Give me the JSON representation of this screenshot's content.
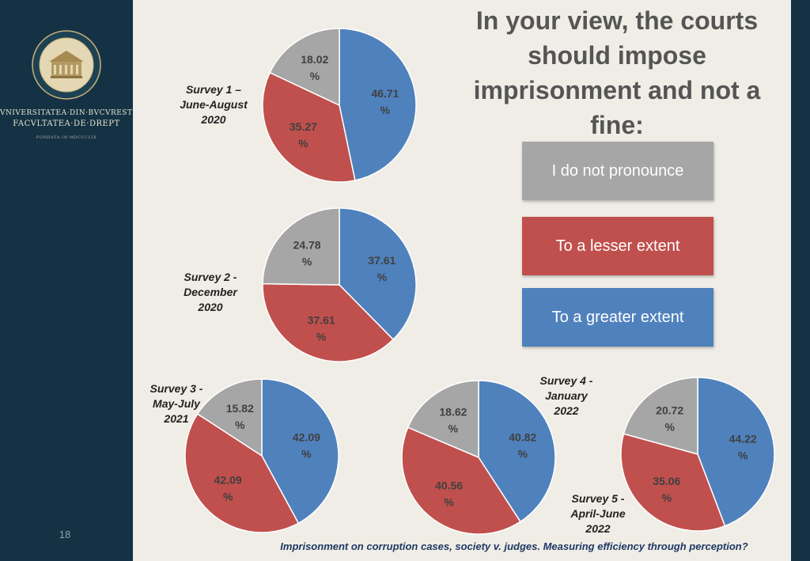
{
  "slide": {
    "page_number": "18"
  },
  "institution": {
    "line1": "VNIVERSITATEA·DIN·BVCVRESTI",
    "line2": "FACVLTATEA·DE·DREPT",
    "line3": "FONDATA·IN·MDCCCLIX"
  },
  "title": "In your view, the courts should impose imprisonment and not a fine:",
  "legend": [
    {
      "label": "I do not pronounce",
      "color": "#a6a6a6"
    },
    {
      "label": "To a lesser extent",
      "color": "#c0504d"
    },
    {
      "label": "To a greater extent",
      "color": "#4f81bd"
    }
  ],
  "footer": "Imprisonment on corruption cases, society v. judges. Measuring efficiency through perception?",
  "chart_data": [
    {
      "type": "pie",
      "title": "Survey 1 –\nJune-August\n2020",
      "categories": [
        "To a greater extent",
        "To a lesser extent",
        "I do not pronounce"
      ],
      "values": [
        46.71,
        35.27,
        18.02
      ],
      "labels": [
        "46.71 %",
        "35.27 %",
        "18.02 %"
      ]
    },
    {
      "type": "pie",
      "title": "Survey 2  -\nDecember\n2020",
      "categories": [
        "To a greater extent",
        "To a lesser extent",
        "I do not pronounce"
      ],
      "values": [
        37.61,
        37.61,
        24.78
      ],
      "labels": [
        "37.61 %",
        "37.61 %",
        "24.78 %"
      ]
    },
    {
      "type": "pie",
      "title": "Survey 3  -\nMay-July\n2021",
      "categories": [
        "To a greater extent",
        "To a lesser extent",
        "I do not pronounce"
      ],
      "values": [
        42.09,
        42.09,
        15.82
      ],
      "labels": [
        "42.09 %",
        "42.09 %",
        "15.82 %"
      ]
    },
    {
      "type": "pie",
      "title": "Survey 4  -\nJanuary\n2022",
      "categories": [
        "To a greater extent",
        "To a lesser extent",
        "I do not pronounce"
      ],
      "values": [
        40.82,
        40.56,
        18.62
      ],
      "labels": [
        "40.82 %",
        "40.56 %",
        "18.62 %"
      ]
    },
    {
      "type": "pie",
      "title": "Survey 5  -\nApril-June\n2022",
      "categories": [
        "To a greater extent",
        "To a lesser extent",
        "I do not pronounce"
      ],
      "values": [
        44.22,
        35.06,
        20.72
      ],
      "labels": [
        "44.22 %",
        "35.06 %",
        "20.72 %"
      ]
    }
  ]
}
